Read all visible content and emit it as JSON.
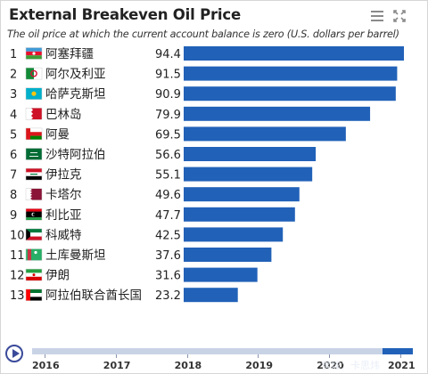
{
  "chart_data": {
    "type": "bar",
    "title": "External Breakeven Oil Price",
    "subtitle": "The oil price at which the current account balance is zero (U.S. dollars per barrel)",
    "ranks": [
      "1",
      "2",
      "3",
      "4",
      "5",
      "6",
      "7",
      "8",
      "9",
      "10",
      "11",
      "12",
      "13"
    ],
    "categories": [
      "阿塞拜疆",
      "阿尔及利亚",
      "哈萨克斯坦",
      "巴林岛",
      "阿曼",
      "沙特阿拉伯",
      "伊拉克",
      "卡塔尔",
      "利比亚",
      "科威特",
      "土库曼斯坦",
      "伊朗",
      "阿拉伯联合酋长国"
    ],
    "flags": [
      "azerbaijan-flag",
      "algeria-flag",
      "kazakhstan-flag",
      "bahrain-flag",
      "oman-flag",
      "saudi-arabia-flag",
      "iraq-flag",
      "qatar-flag",
      "libya-flag",
      "kuwait-flag",
      "turkmenistan-flag",
      "iran-flag",
      "uae-flag"
    ],
    "values": [
      94.4,
      91.5,
      90.9,
      79.9,
      69.5,
      56.6,
      55.1,
      49.6,
      47.7,
      42.5,
      37.6,
      31.6,
      23.2
    ],
    "value_labels": [
      "94.4",
      "91.5",
      "90.9",
      "79.9",
      "69.5",
      "56.6",
      "55.1",
      "49.6",
      "47.7",
      "42.5",
      "37.6",
      "31.6",
      "23.2"
    ],
    "xlim": [
      0,
      94.4
    ],
    "bar_color": "#2161b8",
    "grid": false
  },
  "timeline": {
    "years": [
      "2016",
      "2017",
      "2018",
      "2019",
      "2020",
      "2021"
    ],
    "selected": "2021"
  },
  "watermark": "雪球：卡思炜"
}
